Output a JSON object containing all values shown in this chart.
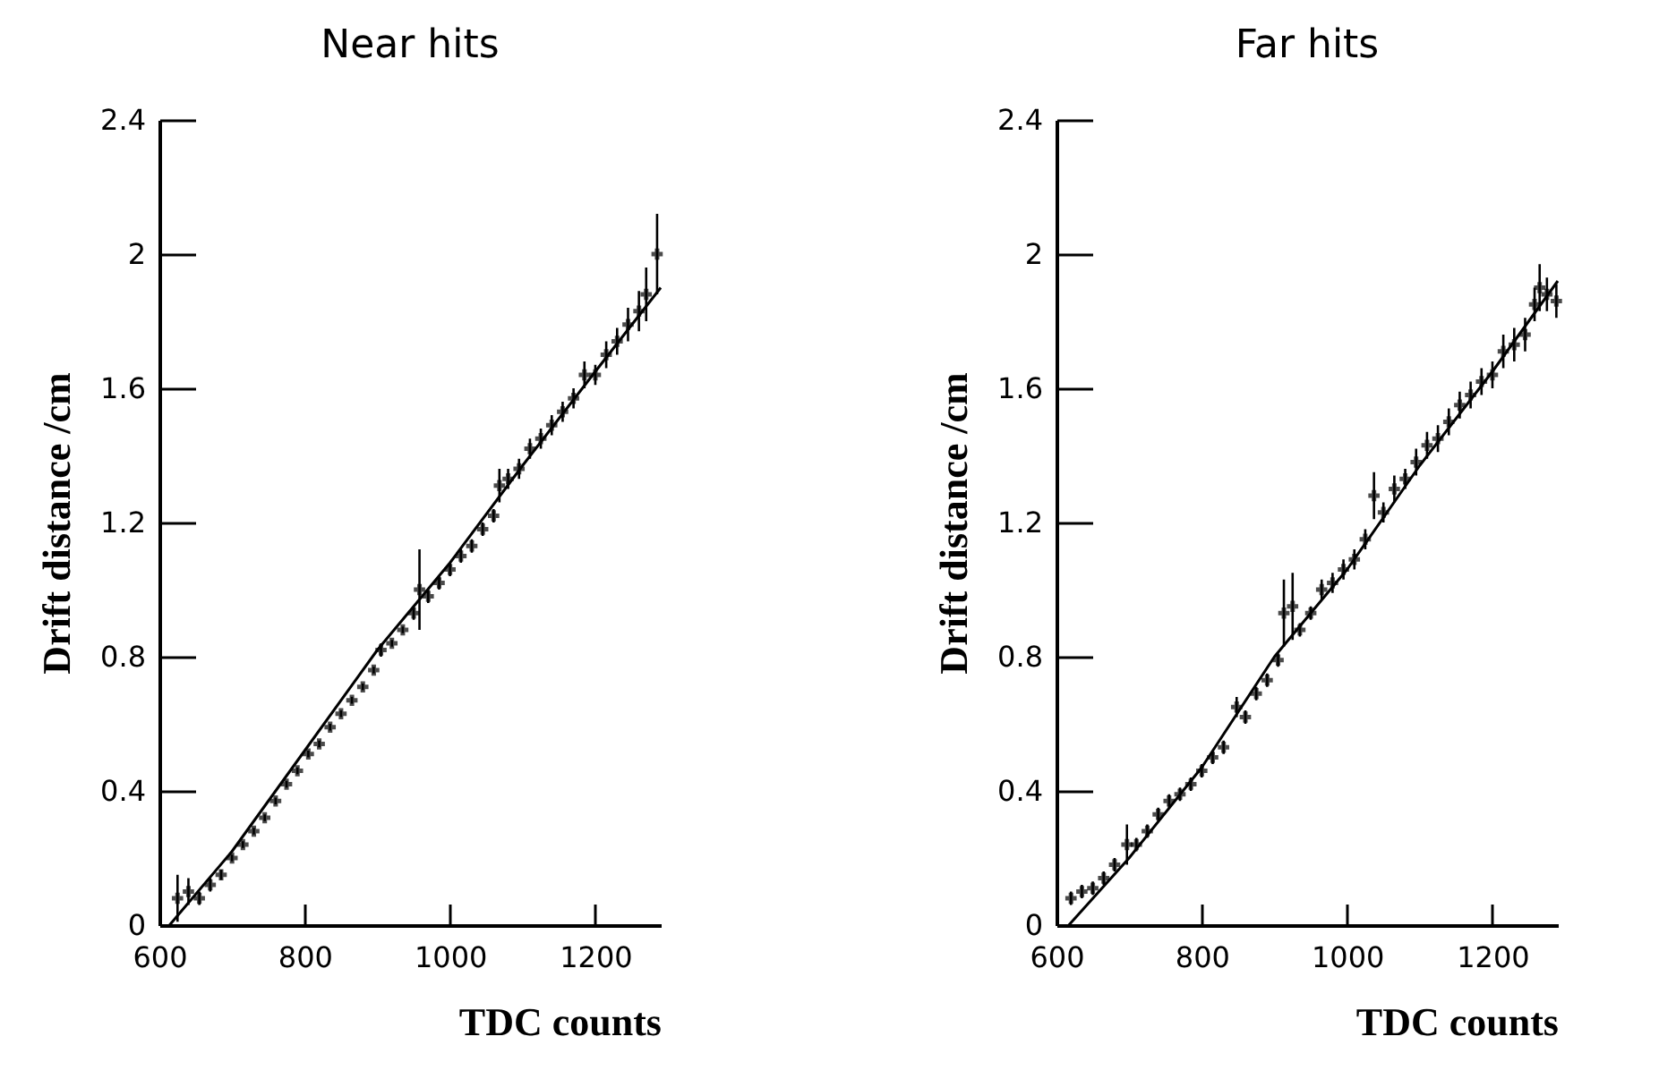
{
  "chart_data": [
    {
      "type": "scatter",
      "title": "Near hits",
      "xlabel": "TDC counts",
      "ylabel": "Drift distance /cm",
      "xlim": [
        600,
        1290
      ],
      "xticks": [
        600,
        800,
        1000,
        1200
      ],
      "ylim": [
        0,
        2.4
      ],
      "yticks": [
        0,
        0.4,
        0.8,
        1.2,
        1.6,
        2,
        2.4
      ],
      "grid": false,
      "series": [
        {
          "type": "scatter",
          "marker": "cross",
          "color": "#000000",
          "x": [
            625,
            640,
            655,
            670,
            685,
            700,
            715,
            730,
            745,
            760,
            775,
            790,
            805,
            820,
            835,
            850,
            865,
            880,
            895,
            905,
            920,
            935,
            950,
            958,
            970,
            985,
            1000,
            1015,
            1030,
            1045,
            1060,
            1068,
            1080,
            1095,
            1110,
            1125,
            1140,
            1155,
            1170,
            1185,
            1200,
            1215,
            1230,
            1245,
            1260,
            1270,
            1285
          ],
          "values": [
            0.08,
            0.1,
            0.08,
            0.12,
            0.15,
            0.2,
            0.24,
            0.28,
            0.32,
            0.37,
            0.42,
            0.46,
            0.51,
            0.54,
            0.59,
            0.63,
            0.67,
            0.71,
            0.76,
            0.82,
            0.84,
            0.88,
            0.93,
            1.0,
            0.98,
            1.02,
            1.06,
            1.1,
            1.13,
            1.18,
            1.22,
            1.31,
            1.33,
            1.36,
            1.42,
            1.45,
            1.49,
            1.53,
            1.57,
            1.64,
            1.64,
            1.7,
            1.74,
            1.79,
            1.83,
            1.88,
            2.0
          ],
          "errors": [
            0.07,
            0.04,
            0.02,
            0.02,
            0.015,
            0.01,
            0.01,
            0.01,
            0.01,
            0.01,
            0.01,
            0.01,
            0.01,
            0.01,
            0.01,
            0.01,
            0.01,
            0.01,
            0.01,
            0.02,
            0.01,
            0.01,
            0.02,
            0.12,
            0.02,
            0.02,
            0.02,
            0.02,
            0.02,
            0.02,
            0.02,
            0.05,
            0.03,
            0.03,
            0.03,
            0.03,
            0.03,
            0.03,
            0.03,
            0.04,
            0.03,
            0.04,
            0.04,
            0.05,
            0.06,
            0.08,
            0.12
          ]
        },
        {
          "type": "line",
          "color": "#000000",
          "x": [
            614,
            700,
            800,
            900,
            1000,
            1100,
            1200,
            1290
          ],
          "values": [
            0,
            0.22,
            0.52,
            0.82,
            1.08,
            1.37,
            1.65,
            1.9
          ]
        }
      ]
    },
    {
      "type": "scatter",
      "title": "Far hits",
      "xlabel": "TDC counts",
      "ylabel": "Drift distance /cm",
      "xlim": [
        600,
        1290
      ],
      "xticks": [
        600,
        800,
        1000,
        1200
      ],
      "ylim": [
        0,
        2.4
      ],
      "yticks": [
        0,
        0.4,
        0.8,
        1.2,
        1.6,
        2,
        2.4
      ],
      "grid": false,
      "series": [
        {
          "type": "scatter",
          "marker": "cross",
          "color": "#000000",
          "x": [
            620,
            635,
            650,
            665,
            680,
            697,
            710,
            725,
            740,
            755,
            770,
            785,
            800,
            815,
            830,
            848,
            860,
            875,
            890,
            905,
            913,
            925,
            935,
            950,
            965,
            980,
            995,
            1010,
            1025,
            1037,
            1050,
            1065,
            1080,
            1095,
            1110,
            1125,
            1140,
            1155,
            1170,
            1185,
            1200,
            1215,
            1230,
            1245,
            1258,
            1265,
            1275,
            1288
          ],
          "values": [
            0.08,
            0.1,
            0.11,
            0.14,
            0.18,
            0.24,
            0.24,
            0.28,
            0.33,
            0.37,
            0.39,
            0.42,
            0.46,
            0.5,
            0.53,
            0.65,
            0.62,
            0.69,
            0.73,
            0.79,
            0.93,
            0.95,
            0.88,
            0.93,
            1.0,
            1.02,
            1.06,
            1.09,
            1.15,
            1.28,
            1.23,
            1.3,
            1.33,
            1.38,
            1.43,
            1.45,
            1.5,
            1.55,
            1.58,
            1.62,
            1.64,
            1.71,
            1.73,
            1.76,
            1.85,
            1.9,
            1.88,
            1.86
          ],
          "errors": [
            0.02,
            0.02,
            0.02,
            0.02,
            0.02,
            0.06,
            0.02,
            0.02,
            0.02,
            0.02,
            0.02,
            0.02,
            0.02,
            0.02,
            0.02,
            0.03,
            0.02,
            0.02,
            0.02,
            0.02,
            0.1,
            0.1,
            0.02,
            0.02,
            0.03,
            0.03,
            0.03,
            0.03,
            0.03,
            0.07,
            0.03,
            0.04,
            0.03,
            0.04,
            0.04,
            0.04,
            0.04,
            0.04,
            0.04,
            0.04,
            0.04,
            0.05,
            0.05,
            0.05,
            0.05,
            0.07,
            0.05,
            0.05
          ]
        },
        {
          "type": "line",
          "color": "#000000",
          "x": [
            617,
            700,
            800,
            900,
            1000,
            1100,
            1200,
            1290
          ],
          "values": [
            0,
            0.2,
            0.47,
            0.8,
            1.06,
            1.37,
            1.65,
            1.92
          ]
        }
      ]
    }
  ]
}
